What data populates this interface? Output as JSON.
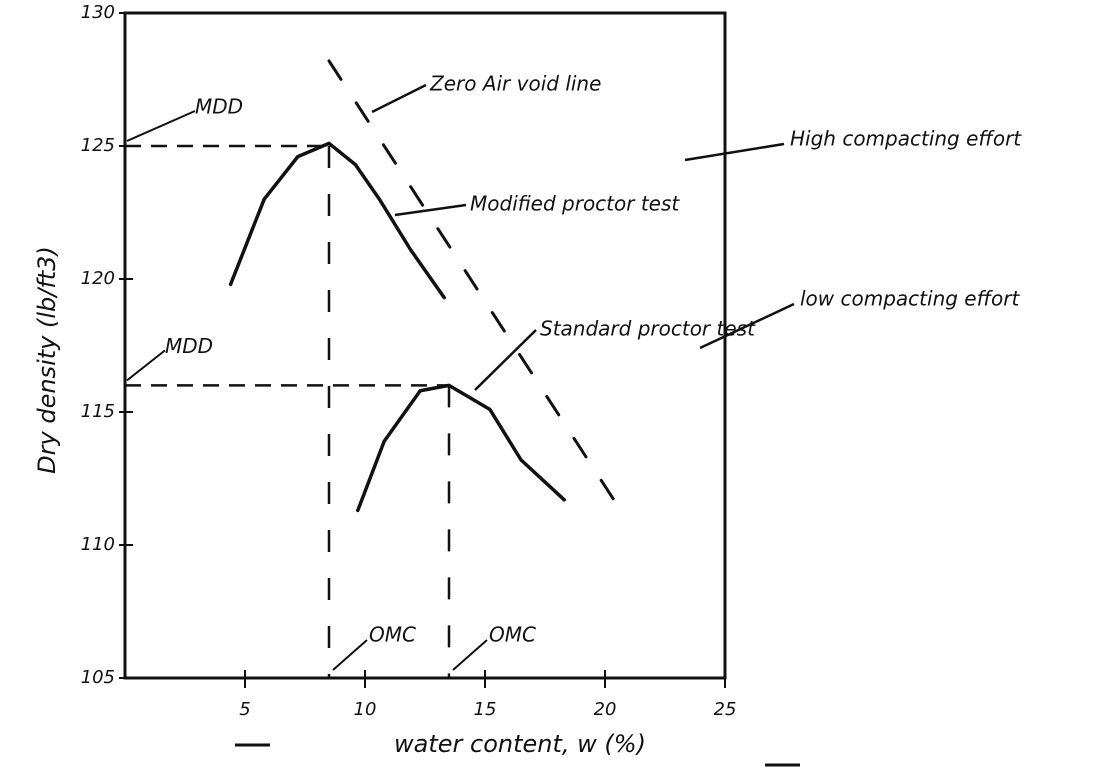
{
  "chart_data": {
    "type": "line",
    "xlabel": "water content, w (%)",
    "ylabel": "Dry density (lb/ft3)",
    "xlim": [
      0,
      25
    ],
    "ylim": [
      105,
      130
    ],
    "xticks": [
      5,
      10,
      15,
      20,
      25
    ],
    "yticks": [
      105,
      110,
      115,
      120,
      125,
      130
    ],
    "series": [
      {
        "name": "Modified proctor test",
        "color": "#111111",
        "dashed": false,
        "x": [
          4.4,
          5.8,
          7.2,
          8.5,
          9.6,
          10.6,
          11.9,
          13.3
        ],
        "values": [
          119.8,
          123,
          124.6,
          125.1,
          124.3,
          123,
          121.1,
          119.3
        ]
      },
      {
        "name": "Standard proctor test",
        "color": "#111111",
        "dashed": false,
        "x": [
          9.7,
          10.8,
          12.3,
          13.5,
          15.2,
          16.5,
          18.3
        ],
        "values": [
          111.3,
          113.9,
          115.8,
          116,
          115.1,
          113.2,
          111.7
        ]
      },
      {
        "name": "Zero Air void line",
        "color": "#111111",
        "dashed": true,
        "x": [
          8.5,
          20.8
        ],
        "values": [
          128.2,
          111.1
        ]
      }
    ],
    "mdd": {
      "label": "MDD",
      "values": [
        125,
        116
      ]
    },
    "omc": {
      "label": "OMC",
      "values": [
        8.5,
        13.5
      ]
    },
    "annotations": [
      "High compacting effort",
      "low compacting effort"
    ]
  }
}
